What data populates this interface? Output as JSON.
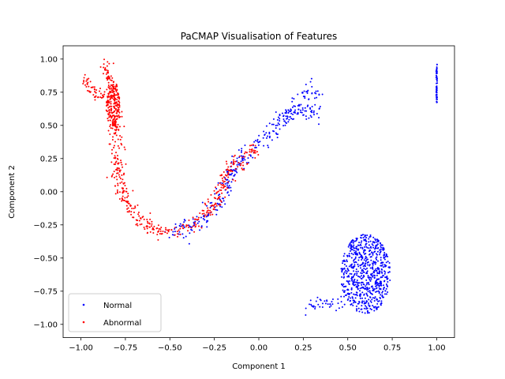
{
  "chart_data": {
    "type": "scatter",
    "title": "PaCMAP Visualisation of Features",
    "xlabel": "Component 1",
    "ylabel": "Component 2",
    "xlim": [
      -1.1,
      1.1
    ],
    "ylim": [
      -1.1,
      1.1
    ],
    "xticks": [
      -1.0,
      -0.75,
      -0.5,
      -0.25,
      0.0,
      0.25,
      0.5,
      0.75,
      1.0
    ],
    "xtick_labels": [
      "−1.00",
      "−0.75",
      "−0.50",
      "−0.25",
      "0.00",
      "0.25",
      "0.50",
      "0.75",
      "1.00"
    ],
    "yticks": [
      -1.0,
      -0.75,
      -0.5,
      -0.25,
      0.0,
      0.25,
      0.5,
      0.75,
      1.0
    ],
    "ytick_labels": [
      "−1.00",
      "−0.75",
      "−0.50",
      "−0.25",
      "0.00",
      "0.25",
      "0.50",
      "0.75",
      "1.00"
    ],
    "grid": false,
    "legend_position": "lower-left",
    "series": [
      {
        "name": "Normal",
        "color": "#0000ff",
        "clusters": [
          {
            "shape": "path",
            "path": [
              [
                -0.5,
                -0.29
              ],
              [
                -0.4,
                -0.29
              ],
              [
                -0.3,
                -0.19
              ],
              [
                -0.2,
                -0.01
              ],
              [
                -0.15,
                0.15
              ],
              [
                -0.05,
                0.32
              ],
              [
                0.05,
                0.42
              ],
              [
                0.15,
                0.52
              ],
              [
                0.22,
                0.68
              ],
              [
                0.3,
                0.77
              ],
              [
                0.35,
                0.74
              ]
            ],
            "spread": 0.04,
            "count": 280
          },
          {
            "shape": "path",
            "path": [
              [
                0.1,
                0.55
              ],
              [
                0.2,
                0.6
              ],
              [
                0.3,
                0.62
              ],
              [
                0.34,
                0.58
              ]
            ],
            "spread": 0.03,
            "count": 60
          },
          {
            "shape": "blob",
            "center": [
              0.6,
              -0.62
            ],
            "rx": 0.14,
            "ry": 0.3,
            "count": 700
          },
          {
            "shape": "path",
            "path": [
              [
                0.29,
                -0.87
              ],
              [
                0.4,
                -0.83
              ],
              [
                0.5,
                -0.85
              ]
            ],
            "spread": 0.03,
            "count": 40
          },
          {
            "shape": "vline",
            "x": 1.0,
            "y_range": [
              0.67,
              0.97
            ],
            "count": 60
          }
        ]
      },
      {
        "name": "Abnormal",
        "color": "#ff0000",
        "clusters": [
          {
            "shape": "path",
            "path": [
              [
                -0.87,
                0.97
              ],
              [
                -0.83,
                0.82
              ],
              [
                -0.81,
                0.6
              ],
              [
                -0.8,
                0.38
              ],
              [
                -0.79,
                0.1
              ],
              [
                -0.76,
                0.0
              ],
              [
                -0.72,
                -0.12
              ],
              [
                -0.68,
                -0.2
              ],
              [
                -0.63,
                -0.26
              ],
              [
                -0.55,
                -0.32
              ],
              [
                -0.45,
                -0.3
              ],
              [
                -0.35,
                -0.25
              ],
              [
                -0.28,
                -0.14
              ],
              [
                -0.22,
                -0.02
              ],
              [
                -0.18,
                0.14
              ],
              [
                -0.1,
                0.22
              ],
              [
                -0.05,
                0.3
              ],
              [
                0.0,
                0.36
              ]
            ],
            "spread": 0.03,
            "count": 520
          },
          {
            "shape": "blob",
            "center": [
              -0.82,
              0.65
            ],
            "rx": 0.04,
            "ry": 0.16,
            "count": 160
          },
          {
            "shape": "path",
            "path": [
              [
                -0.98,
                0.85
              ],
              [
                -0.92,
                0.76
              ],
              [
                -0.86,
                0.7
              ]
            ],
            "spread": 0.025,
            "count": 50
          }
        ]
      }
    ]
  }
}
